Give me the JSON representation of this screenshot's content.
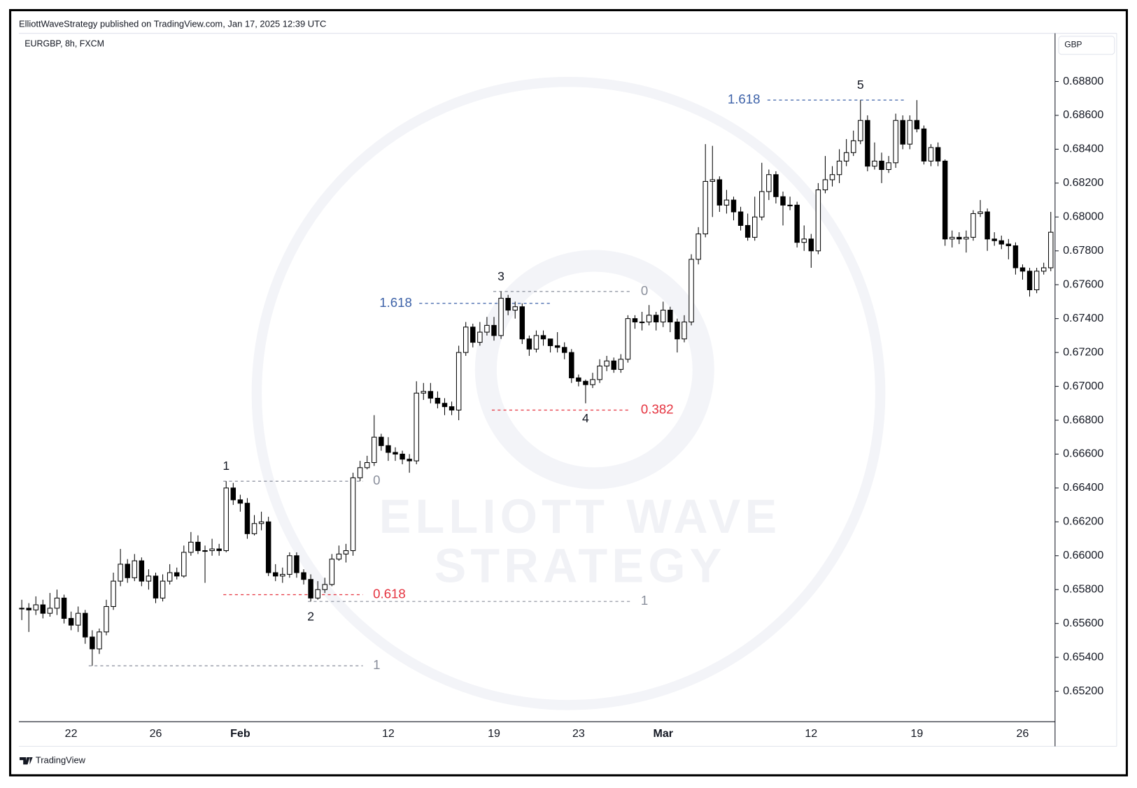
{
  "chart_data": {
    "type": "candlestick",
    "title": "ElliottWaveStrategy published on TradingView.com, Jan 17, 2025 12:39 UTC",
    "symbol": "EURGBP, 8h, FXCM",
    "currency": "GBP",
    "footer": "TradingView",
    "watermark": [
      "ELLIOTT WAVE",
      "STRATEGY"
    ],
    "up_color": "#ffffff",
    "down_color": "#000000",
    "wick_color": "#000000",
    "categories": [
      null,
      null,
      null,
      null,
      null,
      null,
      null,
      "22",
      null,
      null,
      null,
      null,
      null,
      null,
      null,
      null,
      null,
      null,
      null,
      "26",
      null,
      null,
      null,
      null,
      null,
      null,
      null,
      null,
      null,
      null,
      null,
      "Feb",
      null,
      null,
      null,
      null,
      null,
      null,
      null,
      null,
      null,
      null,
      null,
      null,
      null,
      null,
      null,
      null,
      null,
      null,
      null,
      null,
      "12",
      null,
      null,
      null,
      null,
      null,
      null,
      null,
      null,
      null,
      null,
      null,
      null,
      null,
      null,
      "19",
      null,
      null,
      null,
      null,
      null,
      null,
      null,
      null,
      null,
      null,
      null,
      "23",
      null,
      null,
      null,
      null,
      null,
      null,
      null,
      null,
      null,
      null,
      null,
      "Mar",
      null,
      null,
      null,
      null,
      null,
      null,
      null,
      null,
      null,
      null,
      null,
      null,
      null,
      null,
      null,
      null,
      null,
      null,
      null,
      null,
      "12",
      null,
      null,
      null,
      null,
      null,
      null,
      null,
      null,
      null,
      null,
      null,
      null,
      null,
      null,
      "19",
      null,
      null,
      null,
      null,
      null,
      null,
      null,
      null,
      null,
      null,
      null,
      null,
      null,
      null,
      "26",
      null,
      null,
      null,
      null
    ],
    "ohlc": [
      [
        0.6569,
        0.6574,
        0.6562,
        0.6569
      ],
      [
        0.6569,
        0.6572,
        0.6555,
        0.6568
      ],
      [
        0.6568,
        0.6576,
        0.6565,
        0.6571
      ],
      [
        0.6571,
        0.6574,
        0.6563,
        0.6566
      ],
      [
        0.6566,
        0.6578,
        0.6564,
        0.6569
      ],
      [
        0.6569,
        0.658,
        0.6565,
        0.6575
      ],
      [
        0.6575,
        0.6577,
        0.656,
        0.6563
      ],
      [
        0.6563,
        0.6567,
        0.6556,
        0.6559
      ],
      [
        0.6559,
        0.657,
        0.6555,
        0.6566
      ],
      [
        0.6566,
        0.6568,
        0.6548,
        0.6552
      ],
      [
        0.6552,
        0.6556,
        0.6535,
        0.6545
      ],
      [
        0.6545,
        0.6557,
        0.6542,
        0.6555
      ],
      [
        0.6555,
        0.6574,
        0.6553,
        0.657
      ],
      [
        0.657,
        0.659,
        0.6568,
        0.6585
      ],
      [
        0.6585,
        0.6604,
        0.6582,
        0.6595
      ],
      [
        0.6595,
        0.6598,
        0.6584,
        0.6587
      ],
      [
        0.6587,
        0.6601,
        0.6585,
        0.6597
      ],
      [
        0.6597,
        0.6599,
        0.6582,
        0.6585
      ],
      [
        0.6585,
        0.6592,
        0.658,
        0.6588
      ],
      [
        0.6588,
        0.659,
        0.6572,
        0.6575
      ],
      [
        0.6575,
        0.6589,
        0.6573,
        0.6585
      ],
      [
        0.6585,
        0.6595,
        0.6583,
        0.659
      ],
      [
        0.659,
        0.6593,
        0.6586,
        0.6588
      ],
      [
        0.6588,
        0.6606,
        0.6587,
        0.6602
      ],
      [
        0.6602,
        0.6614,
        0.66,
        0.6608
      ],
      [
        0.6608,
        0.6612,
        0.6601,
        0.6603
      ],
      [
        0.6603,
        0.6606,
        0.6584,
        0.6603
      ],
      [
        0.6603,
        0.661,
        0.66,
        0.6604
      ],
      [
        0.6604,
        0.6607,
        0.66,
        0.6603
      ],
      [
        0.6603,
        0.6644,
        0.6602,
        0.664
      ],
      [
        0.664,
        0.6643,
        0.663,
        0.6633
      ],
      [
        0.6633,
        0.6636,
        0.6626,
        0.6631
      ],
      [
        0.6631,
        0.6634,
        0.661,
        0.6613
      ],
      [
        0.6613,
        0.6624,
        0.6612,
        0.6619
      ],
      [
        0.6619,
        0.6626,
        0.6615,
        0.662
      ],
      [
        0.662,
        0.6623,
        0.6588,
        0.659
      ],
      [
        0.659,
        0.6595,
        0.6585,
        0.6588
      ],
      [
        0.6588,
        0.6593,
        0.6584,
        0.6589
      ],
      [
        0.6589,
        0.6602,
        0.6587,
        0.66
      ],
      [
        0.66,
        0.6602,
        0.6587,
        0.659
      ],
      [
        0.659,
        0.6592,
        0.6583,
        0.6586
      ],
      [
        0.6586,
        0.6589,
        0.6573,
        0.6575
      ],
      [
        0.6575,
        0.6585,
        0.6574,
        0.658
      ],
      [
        0.658,
        0.6587,
        0.6578,
        0.6583
      ],
      [
        0.6583,
        0.6601,
        0.6582,
        0.6598
      ],
      [
        0.6598,
        0.6606,
        0.6597,
        0.6601
      ],
      [
        0.6601,
        0.6607,
        0.6596,
        0.6603
      ],
      [
        0.6603,
        0.6649,
        0.66,
        0.6646
      ],
      [
        0.6646,
        0.6656,
        0.6644,
        0.6652
      ],
      [
        0.6652,
        0.6659,
        0.6651,
        0.6655
      ],
      [
        0.6655,
        0.6683,
        0.6653,
        0.667
      ],
      [
        0.667,
        0.6672,
        0.6662,
        0.6665
      ],
      [
        0.6665,
        0.667,
        0.6656,
        0.6661
      ],
      [
        0.6661,
        0.6664,
        0.6656,
        0.666
      ],
      [
        0.666,
        0.6662,
        0.6654,
        0.6657
      ],
      [
        0.6657,
        0.666,
        0.6649,
        0.6656
      ],
      [
        0.6656,
        0.6703,
        0.6654,
        0.6696
      ],
      [
        0.6696,
        0.6702,
        0.6692,
        0.6697
      ],
      [
        0.6697,
        0.6702,
        0.669,
        0.6693
      ],
      [
        0.6693,
        0.6697,
        0.6687,
        0.669
      ],
      [
        0.669,
        0.6693,
        0.6683,
        0.6688
      ],
      [
        0.6688,
        0.6691,
        0.6683,
        0.6686
      ],
      [
        0.6686,
        0.6724,
        0.668,
        0.672
      ],
      [
        0.672,
        0.6738,
        0.6718,
        0.6735
      ],
      [
        0.6735,
        0.6737,
        0.6723,
        0.6726
      ],
      [
        0.6726,
        0.6738,
        0.6724,
        0.6732
      ],
      [
        0.6732,
        0.6741,
        0.673,
        0.6736
      ],
      [
        0.6736,
        0.6741,
        0.6727,
        0.673
      ],
      [
        0.673,
        0.6756,
        0.6728,
        0.6752
      ],
      [
        0.6752,
        0.6754,
        0.6742,
        0.6745
      ],
      [
        0.6745,
        0.675,
        0.674,
        0.6747
      ],
      [
        0.6747,
        0.6749,
        0.6725,
        0.6728
      ],
      [
        0.6728,
        0.673,
        0.6718,
        0.6722
      ],
      [
        0.6722,
        0.6733,
        0.672,
        0.673
      ],
      [
        0.673,
        0.6733,
        0.6724,
        0.6728
      ],
      [
        0.6728,
        0.6728,
        0.672,
        0.6724
      ],
      [
        0.6724,
        0.6732,
        0.672,
        0.6723
      ],
      [
        0.6723,
        0.6726,
        0.6716,
        0.672
      ],
      [
        0.672,
        0.6722,
        0.6702,
        0.6705
      ],
      [
        0.6705,
        0.6707,
        0.67,
        0.6703
      ],
      [
        0.6703,
        0.6704,
        0.669,
        0.6701
      ],
      [
        0.6701,
        0.6708,
        0.6699,
        0.6704
      ],
      [
        0.6704,
        0.6716,
        0.6702,
        0.6712
      ],
      [
        0.6712,
        0.6718,
        0.6709,
        0.6715
      ],
      [
        0.6715,
        0.6717,
        0.6708,
        0.671
      ],
      [
        0.671,
        0.6719,
        0.6708,
        0.6716
      ],
      [
        0.6716,
        0.6742,
        0.6714,
        0.674
      ],
      [
        0.674,
        0.6742,
        0.6734,
        0.6738
      ],
      [
        0.6738,
        0.6744,
        0.6733,
        0.6738
      ],
      [
        0.6738,
        0.6748,
        0.6736,
        0.6742
      ],
      [
        0.6742,
        0.6744,
        0.6733,
        0.6738
      ],
      [
        0.6738,
        0.675,
        0.6735,
        0.6745
      ],
      [
        0.6745,
        0.6747,
        0.6732,
        0.6738
      ],
      [
        0.6738,
        0.674,
        0.672,
        0.6728
      ],
      [
        0.6728,
        0.6742,
        0.6726,
        0.6738
      ],
      [
        0.6738,
        0.6778,
        0.6736,
        0.6775
      ],
      [
        0.6775,
        0.6794,
        0.6772,
        0.679
      ],
      [
        0.679,
        0.6843,
        0.6788,
        0.6821
      ],
      [
        0.6821,
        0.6842,
        0.68,
        0.6822
      ],
      [
        0.6822,
        0.6824,
        0.6803,
        0.6807
      ],
      [
        0.6807,
        0.6816,
        0.6802,
        0.681
      ],
      [
        0.681,
        0.6812,
        0.6798,
        0.6803
      ],
      [
        0.6803,
        0.6806,
        0.6792,
        0.6795
      ],
      [
        0.6795,
        0.6802,
        0.6786,
        0.6788
      ],
      [
        0.6788,
        0.6812,
        0.6786,
        0.68
      ],
      [
        0.68,
        0.6832,
        0.6798,
        0.6815
      ],
      [
        0.6815,
        0.6828,
        0.681,
        0.6825
      ],
      [
        0.6825,
        0.6827,
        0.6808,
        0.6812
      ],
      [
        0.6812,
        0.6815,
        0.6795,
        0.6807
      ],
      [
        0.6807,
        0.6812,
        0.6804,
        0.6807
      ],
      [
        0.6807,
        0.6809,
        0.6782,
        0.6785
      ],
      [
        0.6785,
        0.6795,
        0.678,
        0.6787
      ],
      [
        0.6787,
        0.679,
        0.677,
        0.678
      ],
      [
        0.678,
        0.682,
        0.6778,
        0.6816
      ],
      [
        0.6816,
        0.6836,
        0.6814,
        0.6822
      ],
      [
        0.6822,
        0.683,
        0.6818,
        0.6825
      ],
      [
        0.6825,
        0.684,
        0.682,
        0.6833
      ],
      [
        0.6833,
        0.6846,
        0.683,
        0.6838
      ],
      [
        0.6838,
        0.6851,
        0.6836,
        0.6845
      ],
      [
        0.6845,
        0.6869,
        0.6843,
        0.6857
      ],
      [
        0.6857,
        0.686,
        0.6827,
        0.683
      ],
      [
        0.683,
        0.6844,
        0.6828,
        0.6833
      ],
      [
        0.6833,
        0.6838,
        0.682,
        0.6828
      ],
      [
        0.6828,
        0.6836,
        0.6826,
        0.6832
      ],
      [
        0.6832,
        0.6861,
        0.6829,
        0.6857
      ],
      [
        0.6857,
        0.686,
        0.684,
        0.6843
      ],
      [
        0.6843,
        0.686,
        0.684,
        0.6857
      ],
      [
        0.6857,
        0.6869,
        0.685,
        0.6852
      ],
      [
        0.6852,
        0.6854,
        0.6831,
        0.6833
      ],
      [
        0.6833,
        0.6843,
        0.683,
        0.6841
      ],
      [
        0.6841,
        0.6844,
        0.683,
        0.6833
      ],
      [
        0.6833,
        0.6834,
        0.6783,
        0.6787
      ],
      [
        0.6787,
        0.6792,
        0.6782,
        0.6788
      ],
      [
        0.6788,
        0.6791,
        0.6784,
        0.6787
      ],
      [
        0.6787,
        0.6792,
        0.6779,
        0.6788
      ],
      [
        0.6788,
        0.6804,
        0.6786,
        0.6802
      ],
      [
        0.6802,
        0.681,
        0.68,
        0.6803
      ],
      [
        0.6803,
        0.6805,
        0.678,
        0.6787
      ],
      [
        0.6787,
        0.6791,
        0.6783,
        0.6786
      ],
      [
        0.6786,
        0.6789,
        0.6781,
        0.6784
      ],
      [
        0.6784,
        0.6787,
        0.6775,
        0.6783
      ],
      [
        0.6783,
        0.6785,
        0.6766,
        0.677
      ],
      [
        0.677,
        0.6772,
        0.6763,
        0.6768
      ],
      [
        0.6768,
        0.677,
        0.6753,
        0.6757
      ],
      [
        0.6757,
        0.677,
        0.6755,
        0.6768
      ],
      [
        0.6768,
        0.6773,
        0.6766,
        0.677
      ],
      [
        0.677,
        0.6803,
        0.6768,
        0.6791
      ]
    ],
    "ylim": [
      0.6502,
      0.6908
    ],
    "yticks": [
      {
        "value": 0.652,
        "label": "0.65200"
      },
      {
        "value": 0.654,
        "label": "0.65400"
      },
      {
        "value": 0.656,
        "label": "0.65600"
      },
      {
        "value": 0.658,
        "label": "0.65800"
      },
      {
        "value": 0.66,
        "label": "0.66000"
      },
      {
        "value": 0.662,
        "label": "0.66200"
      },
      {
        "value": 0.664,
        "label": "0.66400"
      },
      {
        "value": 0.666,
        "label": "0.66600"
      },
      {
        "value": 0.668,
        "label": "0.66800"
      },
      {
        "value": 0.67,
        "label": "0.67000"
      },
      {
        "value": 0.672,
        "label": "0.67200"
      },
      {
        "value": 0.674,
        "label": "0.67400"
      },
      {
        "value": 0.676,
        "label": "0.67600"
      },
      {
        "value": 0.678,
        "label": "0.67800"
      },
      {
        "value": 0.68,
        "label": "0.68000"
      },
      {
        "value": 0.682,
        "label": "0.68200"
      },
      {
        "value": 0.684,
        "label": "0.68400"
      },
      {
        "value": 0.686,
        "label": "0.68600"
      },
      {
        "value": 0.688,
        "label": "0.68800"
      }
    ],
    "grid": false,
    "wave_labels": [
      "1",
      "2",
      "3",
      "4",
      "5"
    ],
    "fib_levels": [
      {
        "ratio": 1,
        "price": 0.6535,
        "color": "#8a8f9c"
      },
      {
        "ratio": 0,
        "price": 0.6644,
        "color": "#8a8f9c"
      },
      {
        "ratio": 0.618,
        "price": 0.6577,
        "color": "#e5333f"
      },
      {
        "ratio": 1,
        "price": 0.6573,
        "color": "#8a8f9c"
      },
      {
        "ratio": 1.618,
        "price": 0.6749,
        "color": "#3d62a8"
      },
      {
        "ratio": 0,
        "price": 0.6756,
        "color": "#8a8f9c"
      },
      {
        "ratio": 0.382,
        "price": 0.6686,
        "color": "#e5333f"
      },
      {
        "ratio": 1.618,
        "price": 0.6869,
        "color": "#3d62a8"
      }
    ]
  }
}
